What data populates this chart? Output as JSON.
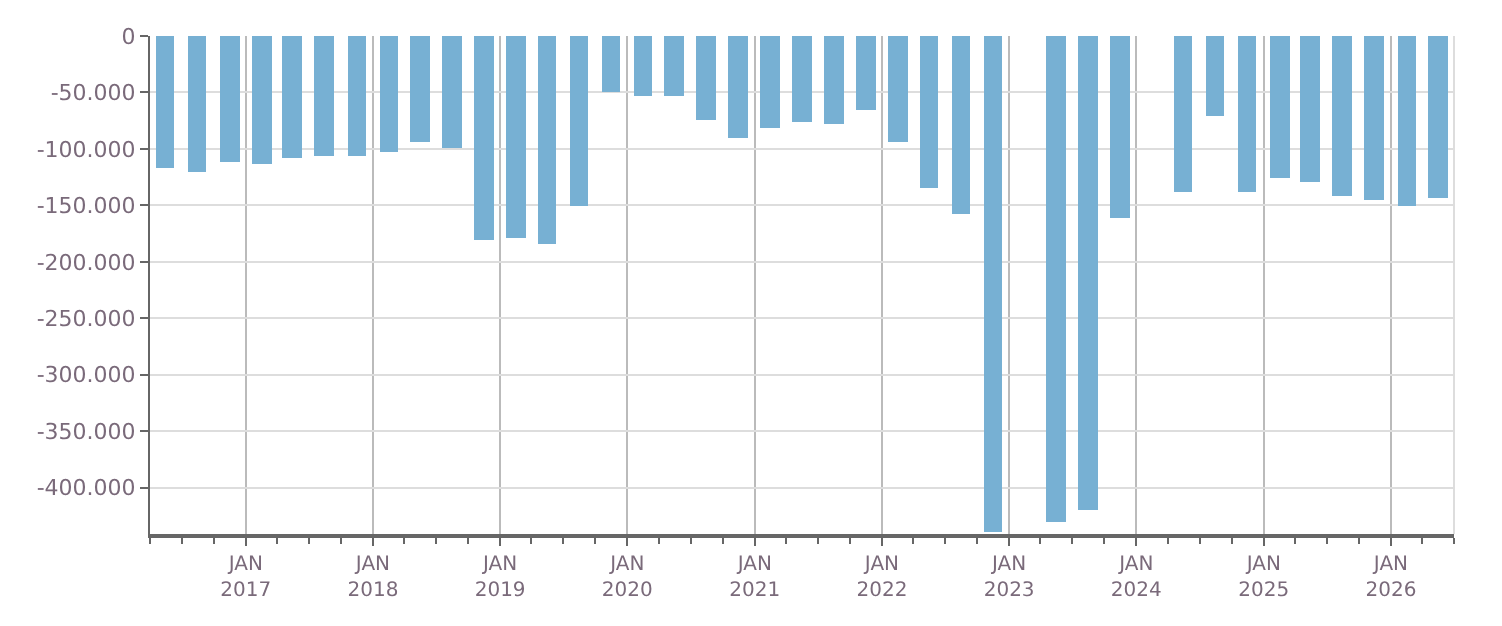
{
  "chart_data": {
    "type": "bar",
    "x": [
      "2016-05-15",
      "2016-08-15",
      "2016-11-15",
      "2017-02-15",
      "2017-05-15",
      "2017-08-15",
      "2017-11-15",
      "2018-02-15",
      "2018-05-15",
      "2018-08-15",
      "2018-11-15",
      "2019-02-15",
      "2019-05-15",
      "2019-08-15",
      "2019-11-15",
      "2020-02-15",
      "2020-05-15",
      "2020-08-15",
      "2020-11-15",
      "2021-02-15",
      "2021-05-15",
      "2021-08-15",
      "2021-11-15",
      "2022-02-15",
      "2022-05-15",
      "2022-08-15",
      "2022-11-15",
      "2023-02-15",
      "2023-05-15",
      "2023-08-15",
      "2023-11-15",
      "2024-02-15",
      "2024-05-15",
      "2024-08-15",
      "2024-11-15",
      "2025-02-15",
      "2025-05-15",
      "2025-08-15",
      "2025-11-15",
      "2026-02-15",
      "2026-05-15"
    ],
    "series": [
      {
        "color": "#77b0d3",
        "values": [
          -116000,
          -120000,
          -111000,
          -113000,
          -108000,
          -106000,
          -106000,
          -103000,
          -94000,
          -99000,
          -181000,
          -179000,
          -184000,
          -151000,
          -50000,
          -53000,
          -53000,
          -75000,
          -90000,
          -81000,
          -77000,
          -78000,
          -65000,
          -93000,
          -135000,
          -158000,
          -440000,
          null,
          -431000,
          -419000,
          -161000,
          null,
          -138000,
          -70000,
          -138000,
          -125000,
          -130000,
          -141000,
          -145000,
          -151000,
          -143000
        ]
      }
    ],
    "xlim": [
      "2016-04-01",
      "2026-07-01"
    ],
    "xticks": [
      {
        "value": "2017-01-01",
        "label": "JAN\n2017"
      },
      {
        "value": "2018-01-01",
        "label": "JAN\n2018"
      },
      {
        "value": "2019-01-01",
        "label": "JAN\n2019"
      },
      {
        "value": "2020-01-01",
        "label": "JAN\n2020"
      },
      {
        "value": "2021-01-01",
        "label": "JAN\n2021"
      },
      {
        "value": "2022-01-01",
        "label": "JAN\n2022"
      },
      {
        "value": "2023-01-01",
        "label": "JAN\n2023"
      },
      {
        "value": "2024-01-01",
        "label": "JAN\n2024"
      },
      {
        "value": "2025-01-01",
        "label": "JAN\n2025"
      },
      {
        "value": "2026-01-01",
        "label": "JAN\n2026"
      }
    ],
    "ylim": [
      -441000,
      0
    ],
    "yticks": [
      0,
      {
        "value": -50000,
        "label": "-50.000"
      },
      {
        "value": -100000,
        "label": "-100.000"
      },
      {
        "value": -150000,
        "label": "-150.000"
      },
      {
        "value": -200000,
        "label": "-200.000"
      },
      {
        "value": -250000,
        "label": "-250.000"
      },
      {
        "value": -300000,
        "label": "-300.000"
      },
      {
        "value": -350000,
        "label": "-350.000"
      },
      {
        "value": -400000,
        "label": "-400.000"
      }
    ],
    "grid": true
  }
}
